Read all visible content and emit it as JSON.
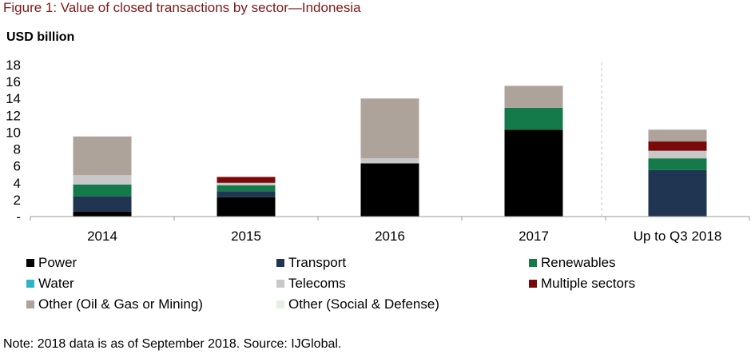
{
  "figure_title": "Figure 1: Value of closed transactions by sector—Indonesia",
  "unit_label": "USD billion",
  "note": "Note: 2018 data is as of September 2018. Source: IJGlobal.",
  "chart_data": {
    "type": "bar",
    "stacked": true,
    "title": "Figure 1: Value of closed transactions by sector—Indonesia",
    "ylabel": "USD billion",
    "xlabel": "",
    "categories": [
      "2014",
      "2015",
      "2016",
      "2017",
      "Up to Q3 2018"
    ],
    "ylim": [
      0,
      18
    ],
    "yticks": [
      "-",
      "2",
      "4",
      "6",
      "8",
      "10",
      "12",
      "14",
      "16",
      "18"
    ],
    "grid": false,
    "legend_position": "bottom",
    "series": [
      {
        "name": "Power",
        "color": "#000000",
        "values": [
          0.6,
          2.3,
          6.3,
          10.3,
          0
        ]
      },
      {
        "name": "Transport",
        "color": "#1f3552",
        "values": [
          1.8,
          0.7,
          0,
          0,
          5.5
        ]
      },
      {
        "name": "Renewables",
        "color": "#147a4a",
        "values": [
          1.4,
          0.7,
          0,
          2.6,
          1.4
        ]
      },
      {
        "name": "Water",
        "color": "#2ab6c4",
        "values": [
          0,
          0,
          0,
          0,
          0
        ]
      },
      {
        "name": "Telecoms",
        "color": "#c8c8c8",
        "values": [
          1.1,
          0.3,
          0.6,
          0,
          0.9
        ]
      },
      {
        "name": "Multiple sectors",
        "color": "#7a0a0a",
        "values": [
          0,
          0.7,
          0,
          0,
          1.1
        ]
      },
      {
        "name": "Other (Oil & Gas or Mining)",
        "color": "#aea39b",
        "values": [
          4.6,
          0,
          7.1,
          2.6,
          1.4
        ]
      },
      {
        "name": "Other (Social & Defense)",
        "color": "#e4efe6",
        "values": [
          0,
          0,
          0,
          0,
          0
        ]
      }
    ]
  }
}
